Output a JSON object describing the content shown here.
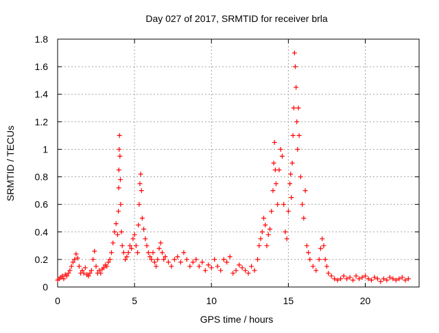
{
  "chart_data": {
    "type": "scatter",
    "title": "Day 027 of 2017, SRMTID for receiver brla",
    "xlabel": "GPS time / hours",
    "ylabel": "SRMTID / TECUs",
    "xlim": [
      0,
      23.5
    ],
    "ylim": [
      0,
      1.8
    ],
    "xticks": [
      0,
      5,
      10,
      15,
      20
    ],
    "xtick_labels": [
      "0",
      "5",
      "10",
      "15",
      "20"
    ],
    "yticks": [
      0,
      0.2,
      0.4,
      0.6,
      0.8,
      1,
      1.2,
      1.4,
      1.6,
      1.8
    ],
    "ytick_labels": [
      "0",
      "0.2",
      "0.4",
      "0.6",
      "0.8",
      "1",
      "1.2",
      "1.4",
      "1.6",
      "1.8"
    ],
    "grid": true,
    "marker": "+",
    "marker_color": "#ff0000",
    "series": [
      {
        "name": "SRMTID",
        "points": [
          [
            0.0,
            0.05
          ],
          [
            0.1,
            0.06
          ],
          [
            0.2,
            0.07
          ],
          [
            0.3,
            0.08
          ],
          [
            0.4,
            0.06
          ],
          [
            0.5,
            0.09
          ],
          [
            0.6,
            0.08
          ],
          [
            0.7,
            0.1
          ],
          [
            0.8,
            0.12
          ],
          [
            0.9,
            0.15
          ],
          [
            1.0,
            0.18
          ],
          [
            1.1,
            0.2
          ],
          [
            1.2,
            0.24
          ],
          [
            1.3,
            0.21
          ],
          [
            1.4,
            0.15
          ],
          [
            1.5,
            0.1
          ],
          [
            1.6,
            0.12
          ],
          [
            1.7,
            0.1
          ],
          [
            1.8,
            0.14
          ],
          [
            1.9,
            0.09
          ],
          [
            2.0,
            0.08
          ],
          [
            2.1,
            0.1
          ],
          [
            2.2,
            0.12
          ],
          [
            2.3,
            0.2
          ],
          [
            2.4,
            0.26
          ],
          [
            2.5,
            0.15
          ],
          [
            2.6,
            0.1
          ],
          [
            2.7,
            0.12
          ],
          [
            2.8,
            0.1
          ],
          [
            2.9,
            0.13
          ],
          [
            3.0,
            0.14
          ],
          [
            3.1,
            0.16
          ],
          [
            3.2,
            0.15
          ],
          [
            3.3,
            0.18
          ],
          [
            3.4,
            0.2
          ],
          [
            3.5,
            0.25
          ],
          [
            3.6,
            0.32
          ],
          [
            3.7,
            0.4
          ],
          [
            3.8,
            0.46
          ],
          [
            3.9,
            0.38
          ],
          [
            3.95,
            0.55
          ],
          [
            3.97,
            0.72
          ],
          [
            3.98,
            0.85
          ],
          [
            4.0,
            1.0
          ],
          [
            4.02,
            1.1
          ],
          [
            4.05,
            0.95
          ],
          [
            4.08,
            0.78
          ],
          [
            4.1,
            0.6
          ],
          [
            4.15,
            0.4
          ],
          [
            4.2,
            0.3
          ],
          [
            4.3,
            0.25
          ],
          [
            4.4,
            0.2
          ],
          [
            4.5,
            0.22
          ],
          [
            4.6,
            0.25
          ],
          [
            4.7,
            0.3
          ],
          [
            4.8,
            0.28
          ],
          [
            4.9,
            0.35
          ],
          [
            5.0,
            0.38
          ],
          [
            5.1,
            0.3
          ],
          [
            5.2,
            0.25
          ],
          [
            5.25,
            0.45
          ],
          [
            5.3,
            0.6
          ],
          [
            5.35,
            0.75
          ],
          [
            5.4,
            0.82
          ],
          [
            5.45,
            0.7
          ],
          [
            5.5,
            0.5
          ],
          [
            5.6,
            0.42
          ],
          [
            5.7,
            0.35
          ],
          [
            5.8,
            0.3
          ],
          [
            5.9,
            0.25
          ],
          [
            6.0,
            0.22
          ],
          [
            6.1,
            0.2
          ],
          [
            6.2,
            0.25
          ],
          [
            6.3,
            0.18
          ],
          [
            6.4,
            0.15
          ],
          [
            6.5,
            0.2
          ],
          [
            6.6,
            0.28
          ],
          [
            6.7,
            0.32
          ],
          [
            6.8,
            0.25
          ],
          [
            6.9,
            0.2
          ],
          [
            7.0,
            0.22
          ],
          [
            7.2,
            0.18
          ],
          [
            7.4,
            0.15
          ],
          [
            7.6,
            0.2
          ],
          [
            7.8,
            0.22
          ],
          [
            8.0,
            0.18
          ],
          [
            8.2,
            0.25
          ],
          [
            8.4,
            0.2
          ],
          [
            8.6,
            0.15
          ],
          [
            8.8,
            0.18
          ],
          [
            9.0,
            0.2
          ],
          [
            9.2,
            0.15
          ],
          [
            9.4,
            0.18
          ],
          [
            9.6,
            0.12
          ],
          [
            9.8,
            0.16
          ],
          [
            10.0,
            0.14
          ],
          [
            10.2,
            0.2
          ],
          [
            10.4,
            0.15
          ],
          [
            10.6,
            0.12
          ],
          [
            10.8,
            0.2
          ],
          [
            11.0,
            0.18
          ],
          [
            11.2,
            0.22
          ],
          [
            11.4,
            0.1
          ],
          [
            11.6,
            0.12
          ],
          [
            11.8,
            0.16
          ],
          [
            12.0,
            0.14
          ],
          [
            12.2,
            0.12
          ],
          [
            12.4,
            0.1
          ],
          [
            12.6,
            0.15
          ],
          [
            12.8,
            0.12
          ],
          [
            13.0,
            0.2
          ],
          [
            13.1,
            0.3
          ],
          [
            13.2,
            0.35
          ],
          [
            13.3,
            0.4
          ],
          [
            13.4,
            0.5
          ],
          [
            13.5,
            0.45
          ],
          [
            13.6,
            0.3
          ],
          [
            13.7,
            0.38
          ],
          [
            13.8,
            0.42
          ],
          [
            13.9,
            0.55
          ],
          [
            14.0,
            0.7
          ],
          [
            14.05,
            0.9
          ],
          [
            14.1,
            1.05
          ],
          [
            14.15,
            0.85
          ],
          [
            14.2,
            0.75
          ],
          [
            14.3,
            0.6
          ],
          [
            14.4,
            0.85
          ],
          [
            14.5,
            1.0
          ],
          [
            14.6,
            0.95
          ],
          [
            14.7,
            0.6
          ],
          [
            14.8,
            0.4
          ],
          [
            14.9,
            0.35
          ],
          [
            15.0,
            0.55
          ],
          [
            15.1,
            0.75
          ],
          [
            15.15,
            0.82
          ],
          [
            15.2,
            0.65
          ],
          [
            15.25,
            0.9
          ],
          [
            15.3,
            1.1
          ],
          [
            15.35,
            1.3
          ],
          [
            15.4,
            1.7
          ],
          [
            15.45,
            1.6
          ],
          [
            15.5,
            1.45
          ],
          [
            15.55,
            1.2
          ],
          [
            15.6,
            1.0
          ],
          [
            15.65,
            1.3
          ],
          [
            15.7,
            1.1
          ],
          [
            15.8,
            0.8
          ],
          [
            15.9,
            0.6
          ],
          [
            16.0,
            0.5
          ],
          [
            16.1,
            0.7
          ],
          [
            16.2,
            0.3
          ],
          [
            16.3,
            0.25
          ],
          [
            16.4,
            0.2
          ],
          [
            16.6,
            0.15
          ],
          [
            16.8,
            0.12
          ],
          [
            17.0,
            0.2
          ],
          [
            17.1,
            0.28
          ],
          [
            17.2,
            0.35
          ],
          [
            17.3,
            0.3
          ],
          [
            17.4,
            0.2
          ],
          [
            17.5,
            0.15
          ],
          [
            17.6,
            0.1
          ],
          [
            17.8,
            0.08
          ],
          [
            18.0,
            0.06
          ],
          [
            18.2,
            0.05
          ],
          [
            18.4,
            0.06
          ],
          [
            18.6,
            0.08
          ],
          [
            18.8,
            0.06
          ],
          [
            19.0,
            0.07
          ],
          [
            19.2,
            0.05
          ],
          [
            19.4,
            0.08
          ],
          [
            19.6,
            0.06
          ],
          [
            19.8,
            0.07
          ],
          [
            20.0,
            0.08
          ],
          [
            20.2,
            0.06
          ],
          [
            20.4,
            0.05
          ],
          [
            20.6,
            0.07
          ],
          [
            20.8,
            0.06
          ],
          [
            21.0,
            0.04
          ],
          [
            21.2,
            0.06
          ],
          [
            21.4,
            0.05
          ],
          [
            21.6,
            0.07
          ],
          [
            21.8,
            0.06
          ],
          [
            22.0,
            0.05
          ],
          [
            22.2,
            0.06
          ],
          [
            22.4,
            0.07
          ],
          [
            22.6,
            0.05
          ],
          [
            22.8,
            0.06
          ]
        ]
      }
    ]
  }
}
